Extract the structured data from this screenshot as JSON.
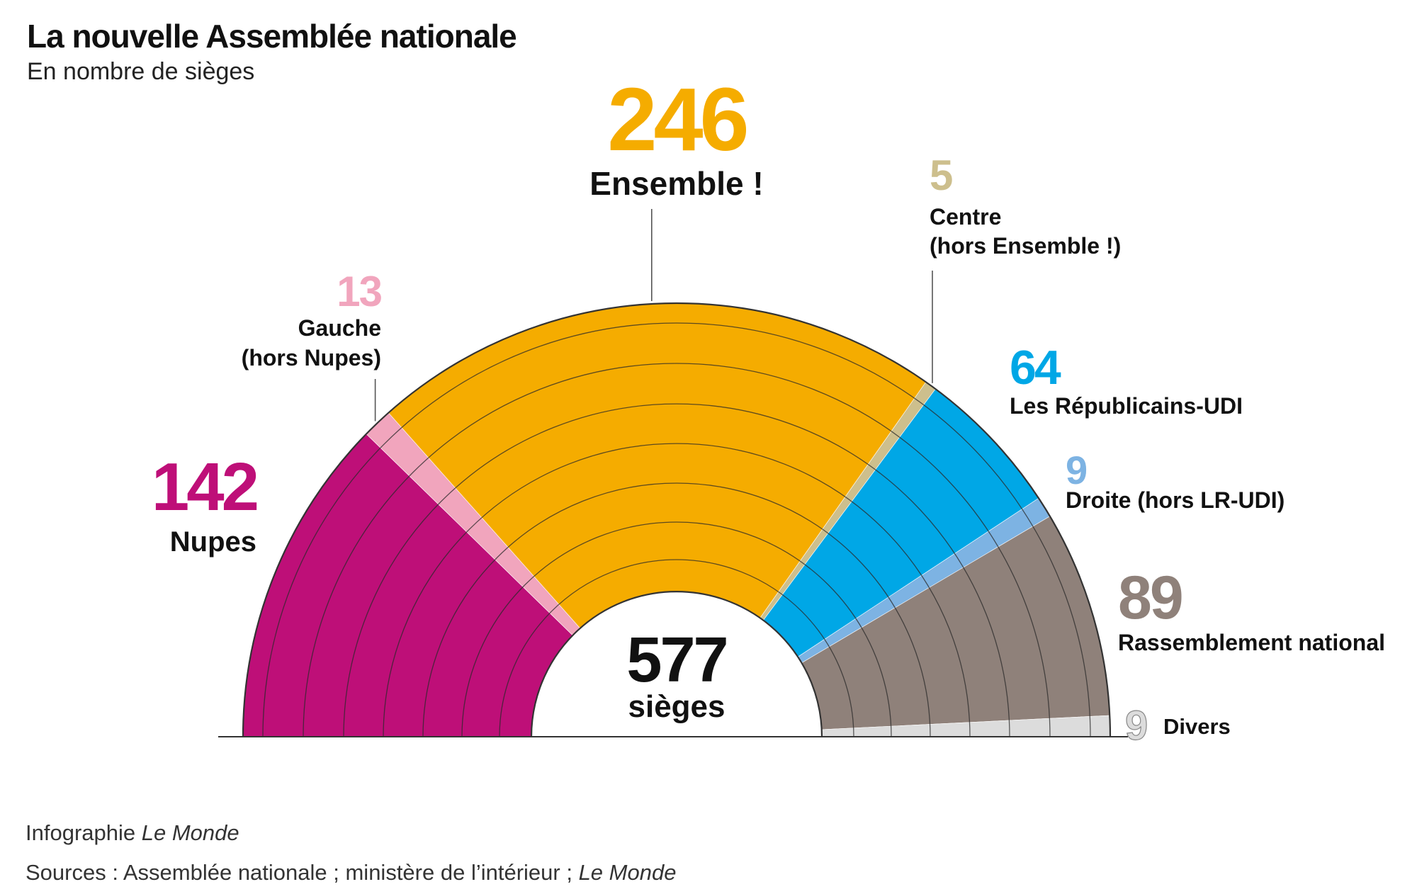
{
  "header": {
    "title": "La nouvelle Assemblée nationale",
    "subtitle": "En nombre de sièges"
  },
  "footer": {
    "credit_prefix": "Infographie ",
    "credit_source": "Le Monde",
    "sources_prefix": "Sources : Assemblée nationale ; ministère de l’intérieur ; ",
    "sources_source": "Le Monde"
  },
  "chart_data": {
    "type": "pie",
    "title": "La nouvelle Assemblée nationale",
    "subtitle": "En nombre de sièges",
    "variant": "hemicycle",
    "total": 577,
    "total_label": "577",
    "total_unit": "sièges",
    "series": [
      {
        "name": "Nupes",
        "value": 142,
        "color": "#be0f78",
        "label_lines": [
          "Nupes"
        ],
        "label_side": "left"
      },
      {
        "name": "Gauche (hors Nupes)",
        "value": 13,
        "color": "#f1a5bd",
        "label_lines": [
          "Gauche",
          "(hors Nupes)"
        ],
        "label_side": "top-left"
      },
      {
        "name": "Ensemble !",
        "value": 246,
        "color": "#f5ac00",
        "label_lines": [
          "Ensemble !"
        ],
        "label_side": "top"
      },
      {
        "name": "Centre (hors Ensemble !)",
        "value": 5,
        "color": "#cdbf8d",
        "label_lines": [
          "Centre",
          "(hors Ensemble !)"
        ],
        "label_side": "top-right"
      },
      {
        "name": "Les Républicains-UDI",
        "value": 64,
        "color": "#00a7e6",
        "label_lines": [
          "Les Républicains-UDI"
        ],
        "label_side": "right"
      },
      {
        "name": "Droite (hors LR-UDI)",
        "value": 9,
        "color": "#7db3e3",
        "label_lines": [
          "Droite (hors LR-UDI)"
        ],
        "label_side": "right"
      },
      {
        "name": "Rassemblement national",
        "value": 89,
        "color": "#8f817a",
        "label_lines": [
          "Rassemblement national"
        ],
        "label_side": "right"
      },
      {
        "name": "Divers",
        "value": 9,
        "color": "#dcdcdc",
        "label_lines": [
          "Divers"
        ],
        "label_side": "right"
      }
    ]
  }
}
